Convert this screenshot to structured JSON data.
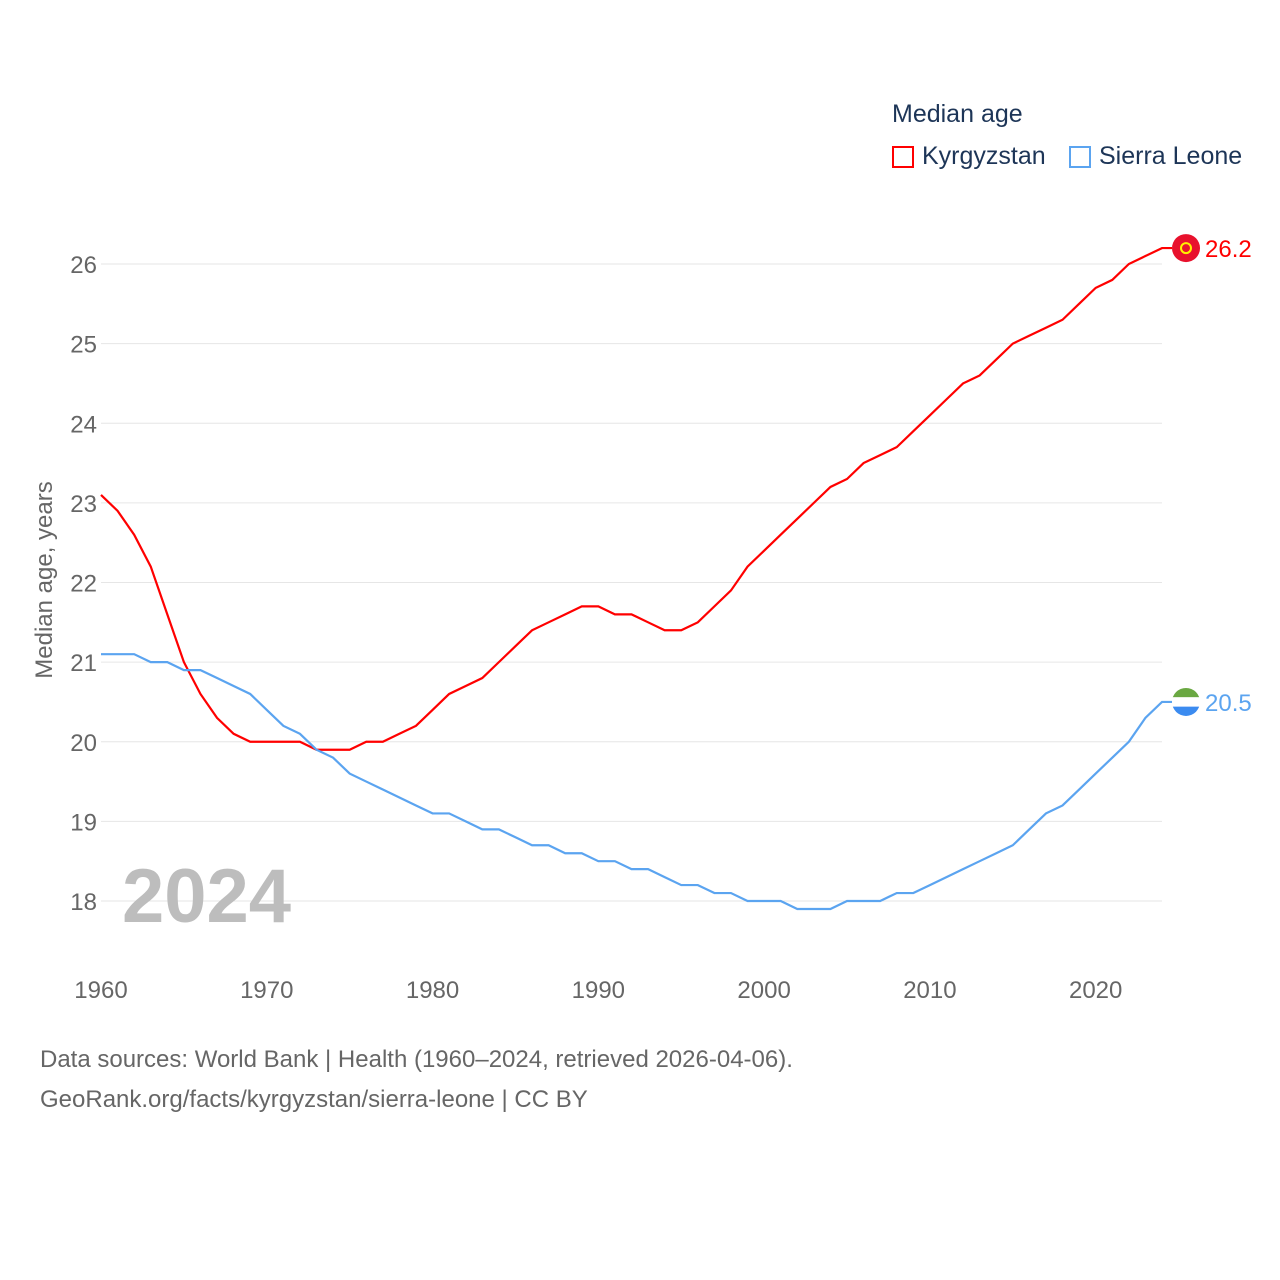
{
  "chart_data": {
    "type": "line",
    "title": "Median age",
    "ylabel": "Median age, years",
    "xlabel": "",
    "xlim": [
      1960,
      2024
    ],
    "ylim": [
      17.3,
      26.6
    ],
    "x_ticks": [
      1960,
      1970,
      1980,
      1990,
      2000,
      2010,
      2020
    ],
    "y_ticks": [
      18,
      19,
      20,
      21,
      22,
      23,
      24,
      25,
      26
    ],
    "grid": true,
    "legend_placement": "top-right",
    "year_label": "2024",
    "series": [
      {
        "name": "Kyrgyzstan",
        "color": "#ff0000",
        "end_label": "26.2",
        "values": [
          23.1,
          22.9,
          22.6,
          22.2,
          21.6,
          21.0,
          20.6,
          20.3,
          20.1,
          20.0,
          20.0,
          20.0,
          20.0,
          19.9,
          19.9,
          19.9,
          20.0,
          20.0,
          20.1,
          20.2,
          20.4,
          20.6,
          20.7,
          20.8,
          21.0,
          21.2,
          21.4,
          21.5,
          21.6,
          21.7,
          21.7,
          21.6,
          21.6,
          21.5,
          21.4,
          21.4,
          21.5,
          21.7,
          21.9,
          22.2,
          22.4,
          22.6,
          22.8,
          23.0,
          23.2,
          23.3,
          23.5,
          23.6,
          23.7,
          23.9,
          24.1,
          24.3,
          24.5,
          24.6,
          24.8,
          25.0,
          25.1,
          25.2,
          25.3,
          25.5,
          25.7,
          25.8,
          26.0,
          26.1,
          26.2
        ]
      },
      {
        "name": "Sierra Leone",
        "color": "#5ba4f0",
        "end_label": "20.5",
        "values": [
          21.1,
          21.1,
          21.1,
          21.0,
          21.0,
          20.9,
          20.9,
          20.8,
          20.7,
          20.6,
          20.4,
          20.2,
          20.1,
          19.9,
          19.8,
          19.6,
          19.5,
          19.4,
          19.3,
          19.2,
          19.1,
          19.1,
          19.0,
          18.9,
          18.9,
          18.8,
          18.7,
          18.7,
          18.6,
          18.6,
          18.5,
          18.5,
          18.4,
          18.4,
          18.3,
          18.2,
          18.2,
          18.1,
          18.1,
          18.0,
          18.0,
          18.0,
          17.9,
          17.9,
          17.9,
          18.0,
          18.0,
          18.0,
          18.1,
          18.1,
          18.2,
          18.3,
          18.4,
          18.5,
          18.6,
          18.7,
          18.9,
          19.1,
          19.2,
          19.4,
          19.6,
          19.8,
          20.0,
          20.3,
          20.5
        ]
      }
    ]
  },
  "footer": {
    "line1": "Data sources: World Bank | Health (1960–2024, retrieved 2026-04-06).",
    "line2": "GeoRank.org/facts/kyrgyzstan/sierra-leone | CC BY"
  }
}
